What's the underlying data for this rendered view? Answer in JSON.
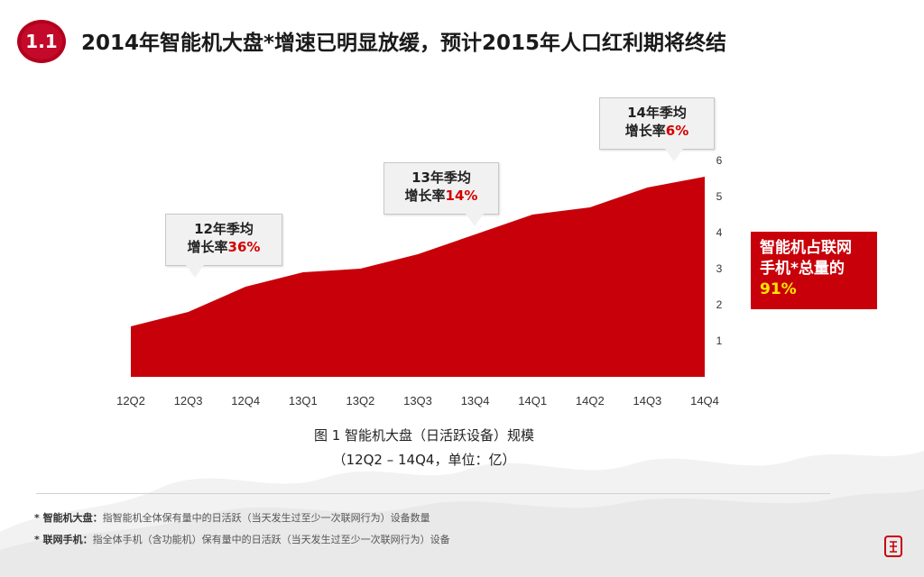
{
  "header": {
    "section_number": "1.1",
    "title": "2014年智能机大盘*增速已明显放缓，预计2015年人口红利期将终结"
  },
  "chart_data": {
    "type": "area",
    "categories": [
      "12Q2",
      "12Q3",
      "12Q4",
      "13Q1",
      "13Q2",
      "13Q3",
      "13Q4",
      "14Q1",
      "14Q2",
      "14Q3",
      "14Q4"
    ],
    "values": [
      1.4,
      1.8,
      2.5,
      2.9,
      3.0,
      3.4,
      3.95,
      4.5,
      4.7,
      5.25,
      5.55
    ],
    "ylim": [
      0,
      6
    ],
    "yticks": [
      "1",
      "2",
      "3",
      "4",
      "5",
      "6"
    ],
    "y_axis_side": "right",
    "fill_color": "#c8000a",
    "grid": false,
    "caption_line1": "图 1 智能机大盘（日活跃设备）规模",
    "caption_line2": "（12Q2 – 14Q4，单位：亿）"
  },
  "callouts": [
    {
      "line1": "12年季均",
      "prefix": "增长率",
      "rate": "36%"
    },
    {
      "line1": "13年季均",
      "prefix": "增长率",
      "rate": "14%"
    },
    {
      "line1": "14年季均",
      "prefix": "增长率",
      "rate": "6%"
    }
  ],
  "share_box": {
    "line1": "智能机占联网",
    "line2": "手机*总量的",
    "value": "91%"
  },
  "notes": [
    {
      "term": "* 智能机大盘：",
      "text": "指智能机全体保有量中的日活跃（当天发生过至少一次联网行为）设备数量"
    },
    {
      "term": "* 联网手机：",
      "text": "指全体手机（含功能机）保有量中的日活跃（当天发生过至少一次联网行为）设备"
    }
  ],
  "colors": {
    "accent_red": "#c8000a",
    "highlight_red": "#d40000",
    "highlight_yellow": "#ffe600"
  },
  "icons": {
    "badge": "red-seal-circle-icon",
    "seal": "seal-stamp-icon",
    "background": "ink-mountain-icon"
  }
}
